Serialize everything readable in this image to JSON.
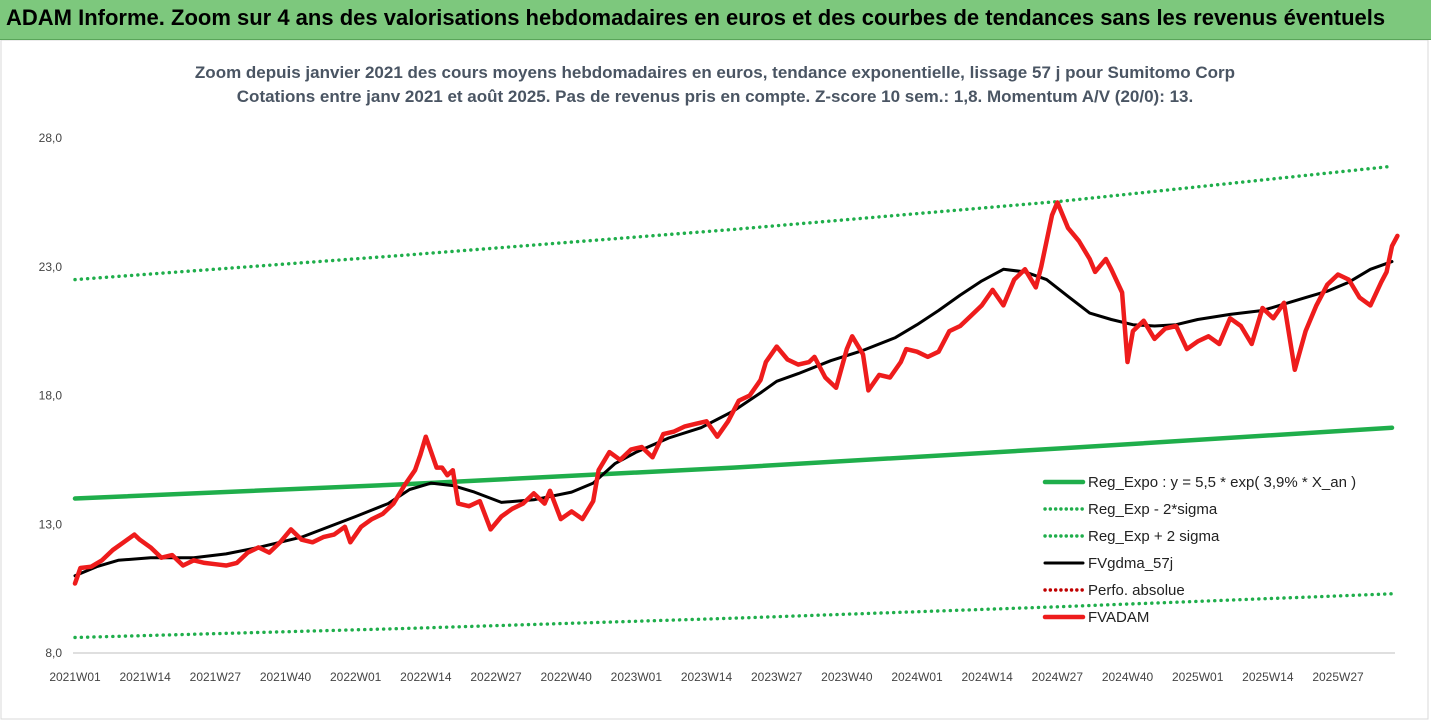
{
  "header": {
    "text": "ADAM Informe. Zoom sur 4 ans des valorisations hebdomadaires en euros et des courbes de tendances sans les revenus éventuels"
  },
  "colors": {
    "header_bg": "#7dc87d",
    "green": "#1fae4b",
    "black": "#000000",
    "red": "#ee1c1c",
    "darkred": "#c00000"
  },
  "chart_data": {
    "type": "line",
    "title": "Zoom depuis janvier 2021 des cours moyens hebdomadaires en euros, tendance exponentielle, lissage 57 j pour Sumitomo Corp",
    "subtitle": "Cotations entre janv 2021 et août 2025. Pas de revenus pris en compte. Z-score 10 sem.: 1,8. Momentum A/V (20/0): 13.",
    "ylim": [
      8,
      28
    ],
    "y_ticks": [
      "8,0",
      "13,0",
      "18,0",
      "23,0",
      "28,0"
    ],
    "y_tick_values": [
      8,
      13,
      18,
      23,
      28
    ],
    "x_ticks": [
      "2021W01",
      "2021W14",
      "2021W27",
      "2021W40",
      "2022W01",
      "2022W14",
      "2022W27",
      "2022W40",
      "2023W01",
      "2023W14",
      "2023W27",
      "2023W40",
      "2024W01",
      "2024W14",
      "2024W27",
      "2024W40",
      "2025W01",
      "2025W14",
      "2025W27"
    ],
    "x_tick_weeks": [
      0,
      13,
      26,
      39,
      52,
      65,
      78,
      91,
      104,
      117,
      130,
      143,
      156,
      169,
      182,
      195,
      208,
      221,
      234
    ],
    "x_range_weeks": [
      0,
      244
    ],
    "legend_position": "bottom-right",
    "series": [
      {
        "name": "Reg_Expo : y = 5,5 * exp( 3,9% *  X_an )",
        "style": "solid-thick",
        "color": "#1fae4b",
        "points": [
          [
            0,
            14.0
          ],
          [
            61,
            14.55
          ],
          [
            122,
            15.2
          ],
          [
            183,
            15.95
          ],
          [
            244,
            16.75
          ]
        ]
      },
      {
        "name": "Reg_Exp - 2*sigma",
        "style": "dotted",
        "color": "#1fae4b",
        "points": [
          [
            0,
            8.6
          ],
          [
            61,
            8.95
          ],
          [
            122,
            9.35
          ],
          [
            183,
            9.8
          ],
          [
            244,
            10.3
          ]
        ]
      },
      {
        "name": "Reg_Exp + 2 sigma",
        "style": "dotted",
        "color": "#1fae4b",
        "points": [
          [
            0,
            22.5
          ],
          [
            61,
            23.45
          ],
          [
            122,
            24.45
          ],
          [
            183,
            25.55
          ],
          [
            244,
            26.9
          ]
        ]
      },
      {
        "name": "FVgdma_57j",
        "style": "solid",
        "color": "#000000",
        "points": [
          [
            0,
            11.0
          ],
          [
            4,
            11.35
          ],
          [
            8,
            11.6
          ],
          [
            14,
            11.7
          ],
          [
            22,
            11.7
          ],
          [
            28,
            11.85
          ],
          [
            34,
            12.1
          ],
          [
            42,
            12.5
          ],
          [
            52,
            13.3
          ],
          [
            58,
            13.8
          ],
          [
            62,
            14.35
          ],
          [
            66,
            14.6
          ],
          [
            70,
            14.5
          ],
          [
            74,
            14.25
          ],
          [
            79,
            13.85
          ],
          [
            85,
            13.95
          ],
          [
            92,
            14.25
          ],
          [
            96,
            14.6
          ],
          [
            100,
            15.35
          ],
          [
            104,
            15.8
          ],
          [
            110,
            16.35
          ],
          [
            116,
            16.75
          ],
          [
            122,
            17.4
          ],
          [
            127,
            18.1
          ],
          [
            130,
            18.55
          ],
          [
            134,
            18.85
          ],
          [
            140,
            19.35
          ],
          [
            146,
            19.75
          ],
          [
            152,
            20.25
          ],
          [
            156,
            20.75
          ],
          [
            160,
            21.3
          ],
          [
            164,
            21.9
          ],
          [
            168,
            22.45
          ],
          [
            172,
            22.9
          ],
          [
            176,
            22.8
          ],
          [
            180,
            22.5
          ],
          [
            184,
            21.85
          ],
          [
            188,
            21.2
          ],
          [
            192,
            20.95
          ],
          [
            196,
            20.75
          ],
          [
            200,
            20.7
          ],
          [
            204,
            20.75
          ],
          [
            208,
            20.95
          ],
          [
            214,
            21.15
          ],
          [
            220,
            21.3
          ],
          [
            224,
            21.55
          ],
          [
            228,
            21.8
          ],
          [
            232,
            22.05
          ],
          [
            236,
            22.4
          ],
          [
            240,
            22.9
          ],
          [
            244,
            23.2
          ]
        ]
      },
      {
        "name": "Perfo. absolue",
        "style": "dotted",
        "color": "#c00000",
        "points": []
      },
      {
        "name": "FVADAM",
        "style": "solid-thick",
        "color": "#ee1c1c",
        "points": [
          [
            0,
            10.7
          ],
          [
            1,
            11.3
          ],
          [
            3,
            11.35
          ],
          [
            5,
            11.6
          ],
          [
            7,
            12.0
          ],
          [
            9,
            12.3
          ],
          [
            11,
            12.6
          ],
          [
            12,
            12.4
          ],
          [
            14,
            12.1
          ],
          [
            16,
            11.7
          ],
          [
            18,
            11.8
          ],
          [
            20,
            11.4
          ],
          [
            22,
            11.6
          ],
          [
            24,
            11.5
          ],
          [
            26,
            11.45
          ],
          [
            28,
            11.4
          ],
          [
            30,
            11.5
          ],
          [
            32,
            11.9
          ],
          [
            34,
            12.1
          ],
          [
            36,
            11.9
          ],
          [
            38,
            12.3
          ],
          [
            40,
            12.8
          ],
          [
            42,
            12.4
          ],
          [
            44,
            12.3
          ],
          [
            46,
            12.5
          ],
          [
            48,
            12.6
          ],
          [
            50,
            12.9
          ],
          [
            51,
            12.3
          ],
          [
            53,
            12.9
          ],
          [
            55,
            13.2
          ],
          [
            57,
            13.4
          ],
          [
            59,
            13.8
          ],
          [
            61,
            14.5
          ],
          [
            63,
            15.1
          ],
          [
            64,
            15.7
          ],
          [
            65,
            16.4
          ],
          [
            66,
            15.8
          ],
          [
            67,
            15.2
          ],
          [
            68,
            15.2
          ],
          [
            69,
            14.9
          ],
          [
            70,
            15.1
          ],
          [
            71,
            13.8
          ],
          [
            73,
            13.7
          ],
          [
            75,
            13.9
          ],
          [
            77,
            12.8
          ],
          [
            79,
            13.3
          ],
          [
            81,
            13.6
          ],
          [
            83,
            13.8
          ],
          [
            85,
            14.2
          ],
          [
            87,
            13.8
          ],
          [
            88,
            14.3
          ],
          [
            90,
            13.2
          ],
          [
            92,
            13.5
          ],
          [
            94,
            13.2
          ],
          [
            96,
            13.9
          ],
          [
            97,
            15.1
          ],
          [
            99,
            15.8
          ],
          [
            101,
            15.5
          ],
          [
            103,
            15.9
          ],
          [
            105,
            16.0
          ],
          [
            107,
            15.6
          ],
          [
            109,
            16.5
          ],
          [
            111,
            16.6
          ],
          [
            113,
            16.8
          ],
          [
            115,
            16.9
          ],
          [
            117,
            17.0
          ],
          [
            119,
            16.4
          ],
          [
            121,
            17.0
          ],
          [
            123,
            17.8
          ],
          [
            125,
            18.0
          ],
          [
            127,
            18.6
          ],
          [
            128,
            19.3
          ],
          [
            130,
            19.9
          ],
          [
            132,
            19.4
          ],
          [
            134,
            19.2
          ],
          [
            136,
            19.3
          ],
          [
            137,
            19.5
          ],
          [
            139,
            18.7
          ],
          [
            141,
            18.3
          ],
          [
            143,
            19.8
          ],
          [
            144,
            20.3
          ],
          [
            146,
            19.6
          ],
          [
            147,
            18.2
          ],
          [
            149,
            18.8
          ],
          [
            151,
            18.7
          ],
          [
            153,
            19.3
          ],
          [
            154,
            19.8
          ],
          [
            156,
            19.7
          ],
          [
            158,
            19.5
          ],
          [
            160,
            19.7
          ],
          [
            162,
            20.5
          ],
          [
            164,
            20.7
          ],
          [
            166,
            21.1
          ],
          [
            168,
            21.5
          ],
          [
            170,
            22.1
          ],
          [
            172,
            21.5
          ],
          [
            174,
            22.5
          ],
          [
            176,
            22.9
          ],
          [
            178,
            22.2
          ],
          [
            179,
            23.0
          ],
          [
            181,
            25.0
          ],
          [
            182,
            25.5
          ],
          [
            184,
            24.5
          ],
          [
            186,
            24.0
          ],
          [
            188,
            23.3
          ],
          [
            189,
            22.8
          ],
          [
            191,
            23.3
          ],
          [
            192,
            22.9
          ],
          [
            194,
            22.0
          ],
          [
            195,
            19.3
          ],
          [
            196,
            20.5
          ],
          [
            198,
            20.9
          ],
          [
            200,
            20.2
          ],
          [
            202,
            20.6
          ],
          [
            204,
            20.7
          ],
          [
            206,
            19.8
          ],
          [
            208,
            20.1
          ],
          [
            210,
            20.3
          ],
          [
            212,
            20.0
          ],
          [
            214,
            21.0
          ],
          [
            216,
            20.7
          ],
          [
            218,
            20.0
          ],
          [
            220,
            21.4
          ],
          [
            222,
            21.0
          ],
          [
            224,
            21.6
          ],
          [
            226,
            19.0
          ],
          [
            228,
            20.5
          ],
          [
            230,
            21.5
          ],
          [
            232,
            22.3
          ],
          [
            234,
            22.7
          ],
          [
            236,
            22.5
          ],
          [
            238,
            21.8
          ],
          [
            240,
            21.5
          ],
          [
            242,
            22.4
          ],
          [
            243,
            22.8
          ],
          [
            244,
            23.8
          ],
          [
            245,
            24.2
          ]
        ]
      }
    ]
  }
}
